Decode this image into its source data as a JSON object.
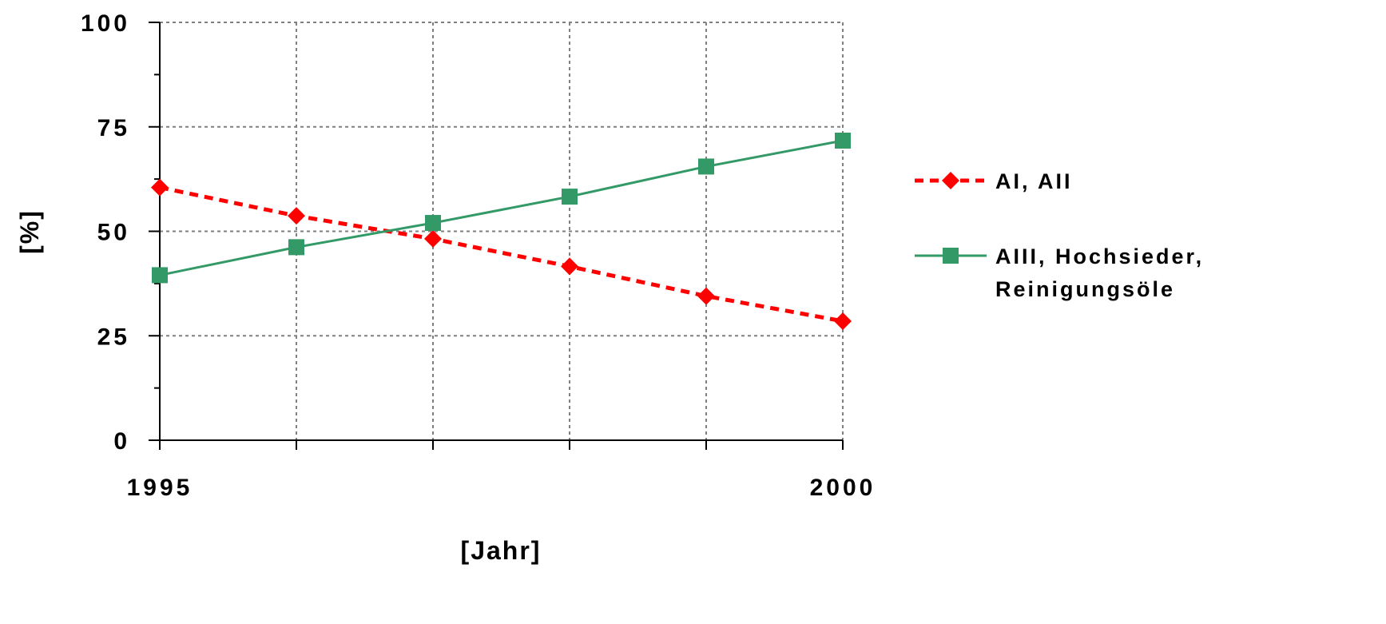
{
  "chart_data": {
    "type": "line",
    "xlabel": "[Jahr]",
    "ylabel": "[%]",
    "x": [
      1995,
      1996,
      1997,
      1998,
      1999,
      2000
    ],
    "x_tick_labels": [
      "1995",
      "2000"
    ],
    "xlim": [
      1995,
      2000
    ],
    "ylim": [
      0,
      100
    ],
    "y_ticks": [
      0,
      25,
      50,
      75,
      100
    ],
    "y_tick_labels": [
      "0",
      "25",
      "50",
      "75",
      "100"
    ],
    "grid": true,
    "legend_position": "right",
    "series": [
      {
        "name": "AI, AII",
        "values": [
          60.5,
          53.7,
          48.2,
          41.6,
          34.5,
          28.5
        ],
        "color": "#ff0000",
        "line_style": "dashed",
        "marker": "diamond"
      },
      {
        "name_lines": [
          "AIII, Hochsieder,",
          "Reinigungsöle"
        ],
        "values": [
          39.5,
          46.2,
          52.0,
          58.3,
          65.5,
          71.7
        ],
        "color": "#339966",
        "line_style": "solid",
        "marker": "square"
      }
    ]
  }
}
